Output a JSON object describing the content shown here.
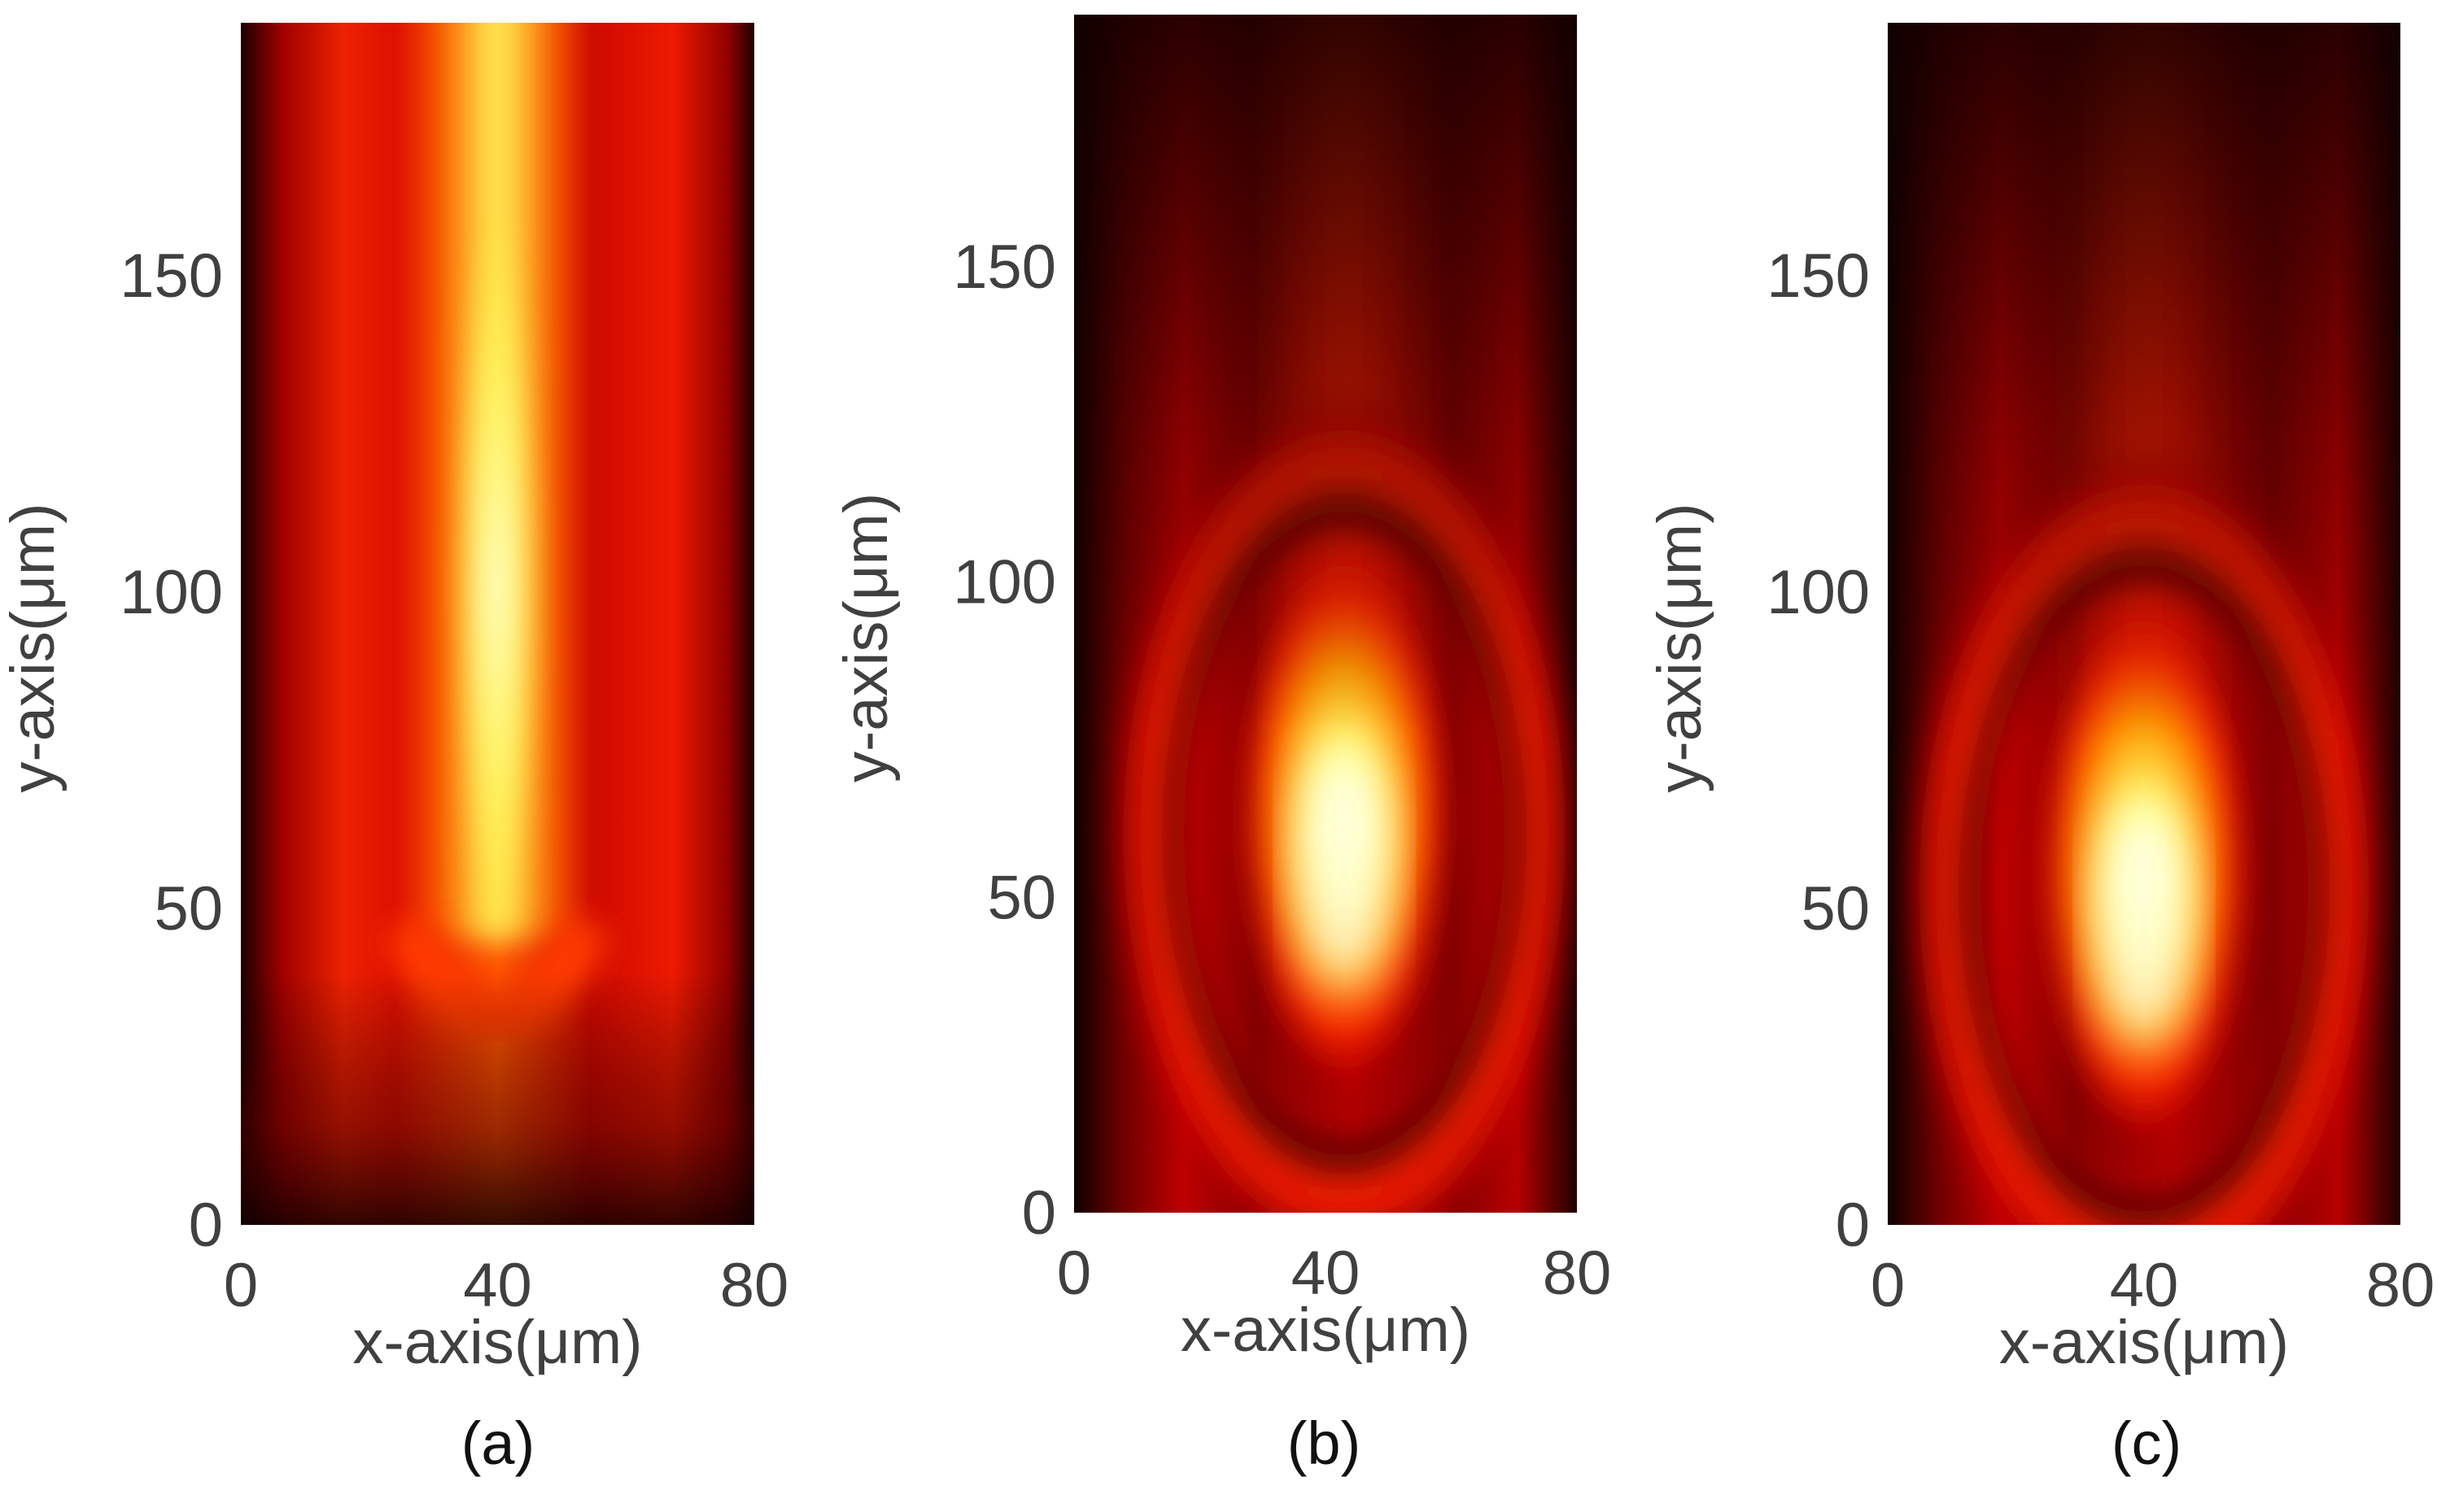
{
  "chart_data": [
    {
      "type": "heatmap",
      "panel_label": "(a)",
      "xlabel": "x-axis(μm)",
      "ylabel": "y-axis(μm)",
      "xlim": [
        0,
        80
      ],
      "ylim": [
        0,
        190
      ],
      "x_ticks": [
        0,
        40,
        80
      ],
      "y_ticks": [
        0,
        50,
        100,
        150
      ],
      "colormap": "hot",
      "peak": {
        "x": 40,
        "y_start": 50,
        "y_end": 190,
        "shape": "vertical beam"
      },
      "side_lobes_x": [
        13,
        67
      ]
    },
    {
      "type": "heatmap",
      "panel_label": "(b)",
      "xlabel": "x-axis(μm)",
      "ylabel": "y-axis(μm)",
      "xlim": [
        0,
        80
      ],
      "ylim": [
        0,
        190
      ],
      "x_ticks": [
        0,
        40,
        80
      ],
      "y_ticks": [
        0,
        50,
        100,
        150
      ],
      "colormap": "hot",
      "peak": {
        "x": 43,
        "y": 55,
        "shape": "focused spot"
      },
      "side_lobes_x": [
        15,
        72
      ]
    },
    {
      "type": "heatmap",
      "panel_label": "(c)",
      "xlabel": "x-axis(μm)",
      "ylabel": "y-axis(μm)",
      "xlim": [
        0,
        80
      ],
      "ylim": [
        0,
        190
      ],
      "x_ticks": [
        0,
        40,
        80
      ],
      "y_ticks": [
        0,
        50,
        100,
        150
      ],
      "colormap": "hot",
      "peak": {
        "x": 40,
        "y": 48,
        "shape": "focused spot"
      },
      "side_lobes_x": [
        15,
        68
      ]
    }
  ]
}
